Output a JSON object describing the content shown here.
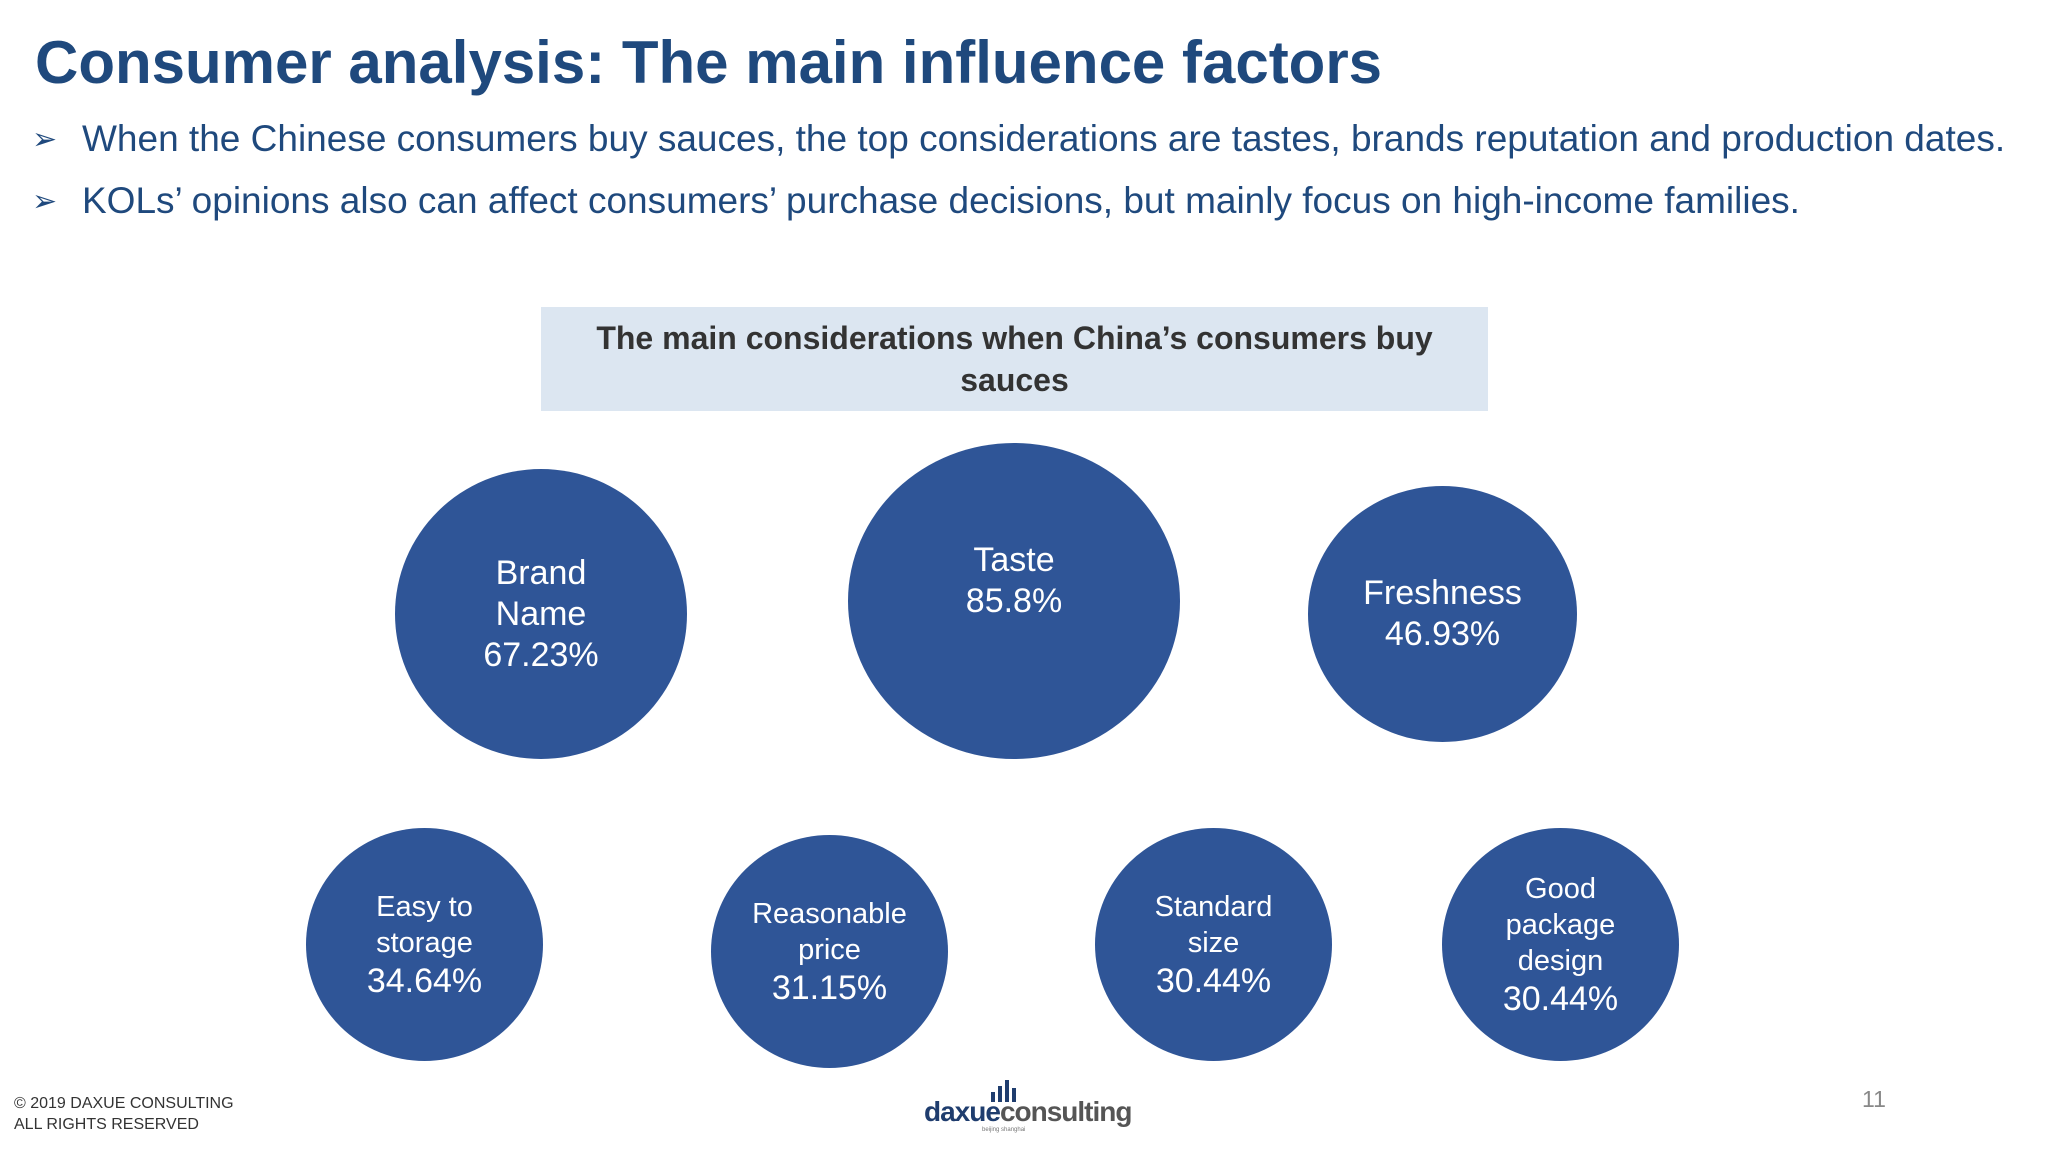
{
  "slide": {
    "title": "Consumer analysis: The main influence factors",
    "bullets": [
      {
        "icon": "arrow-bullet-icon",
        "text": "When the Chinese consumers buy sauces, the top considerations are tastes, brands reputation and production dates."
      },
      {
        "icon": "arrow-bullet-icon",
        "text": "KOLs’ opinions also can affect consumers’ purchase decisions, but mainly focus on high-income families."
      }
    ],
    "chart_header": "The main considerations when China’s consumers buy sauces",
    "bubbles": [
      {
        "label": "Brand\nName",
        "value": "67.23%"
      },
      {
        "label": "Taste",
        "value": "85.8%"
      },
      {
        "label": "Freshness",
        "value": "46.93%"
      },
      {
        "label": "Easy to\nstorage",
        "value": "34.64%"
      },
      {
        "label": "Reasonable\nprice",
        "value": "31.15%"
      },
      {
        "label": "Standard\nsize",
        "value": "30.44%"
      },
      {
        "label": "Good\npackage\ndesign",
        "value": "30.44%"
      }
    ],
    "bubble_color": "#2f5597",
    "footer": {
      "copyright_line1": "© 2019 DAXUE CONSULTING",
      "copyright_line2": "ALL RIGHTS RESERVED",
      "logo_part1": "daxue",
      "logo_part2": "consulting",
      "logo_sub": "beijing shanghai",
      "page_number": "11"
    },
    "colors": {
      "title": "#1f497d",
      "header_bg": "#dce6f1",
      "bubble": "#2f5597"
    }
  }
}
